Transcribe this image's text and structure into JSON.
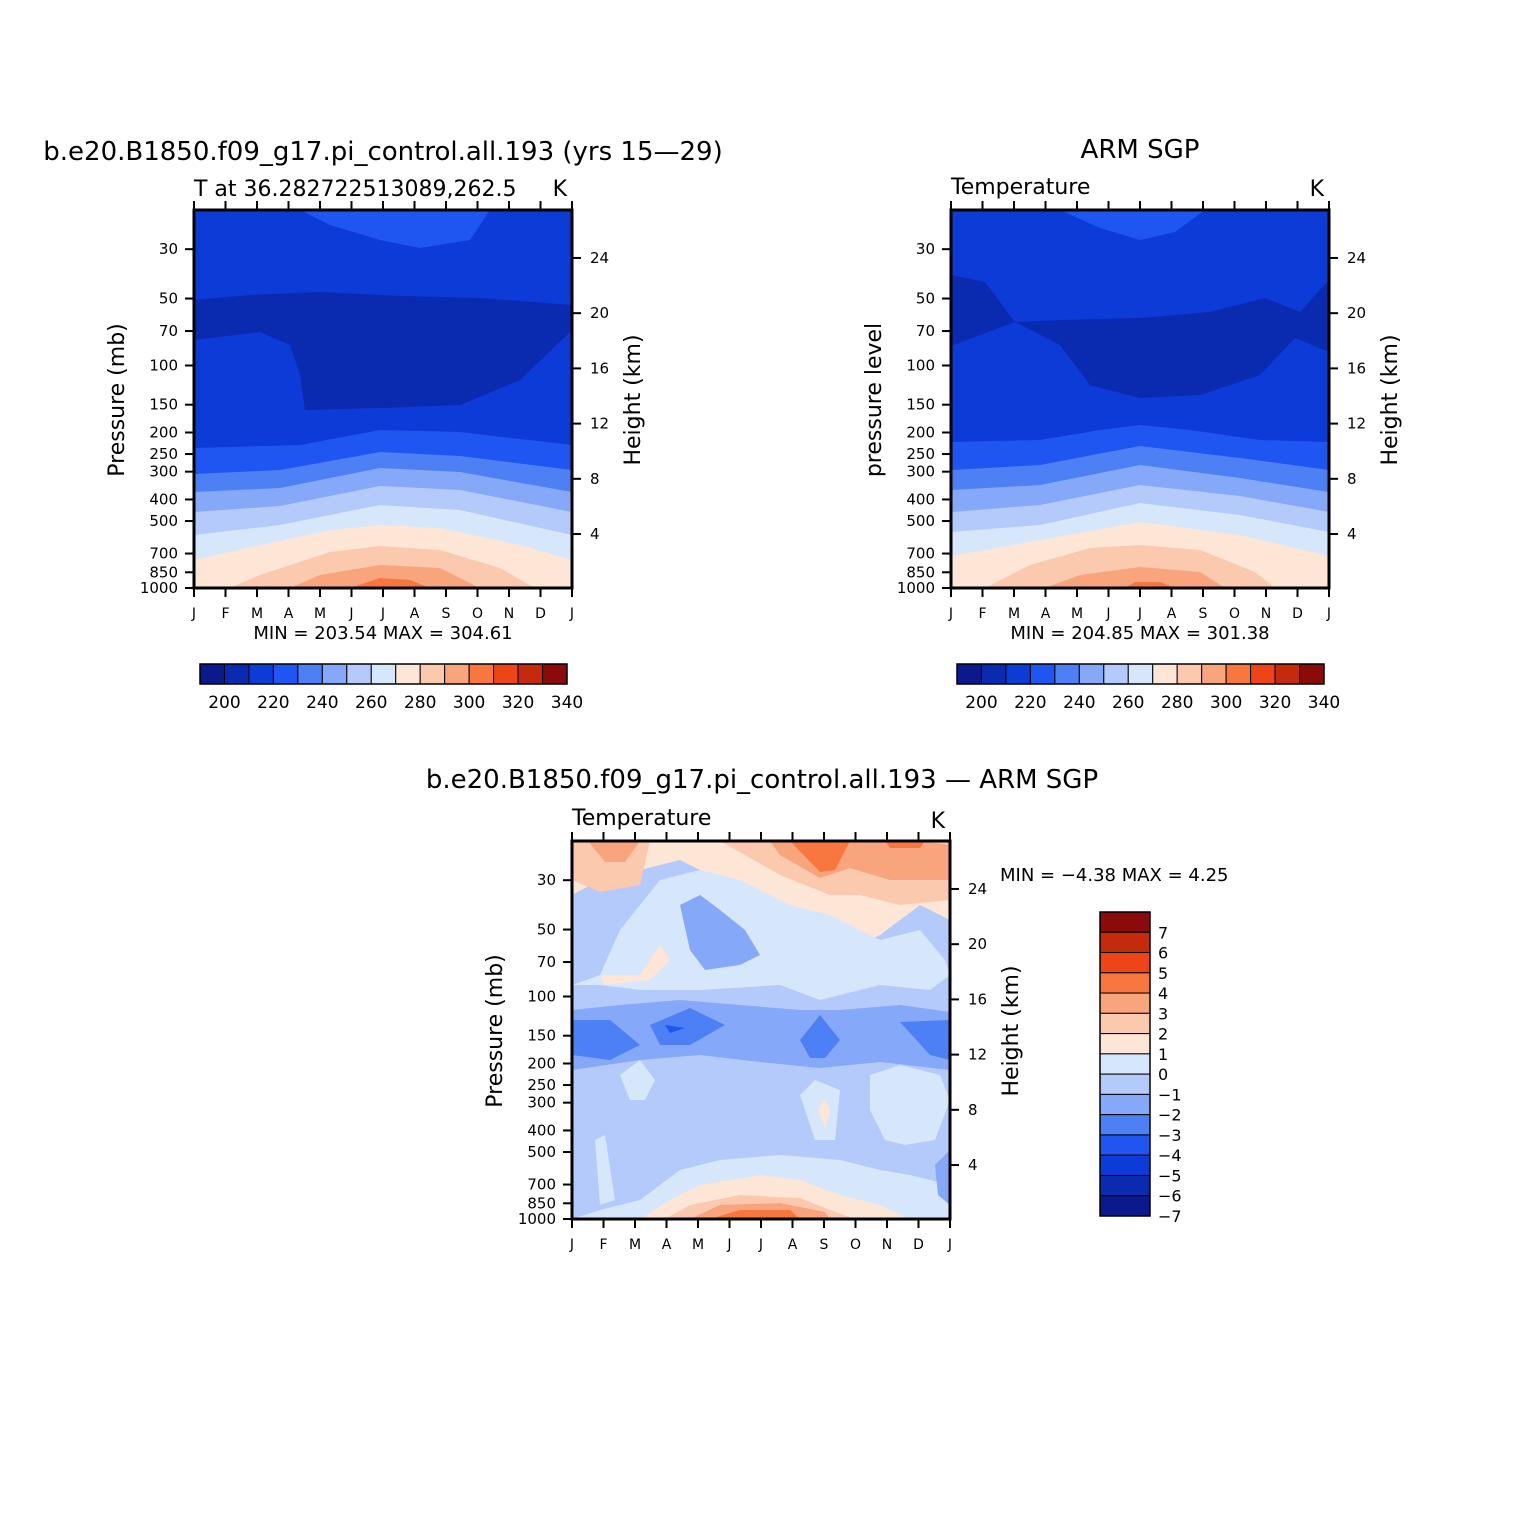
{
  "panels": [
    {
      "title": "b.e20.B1850.f09_g17.pi_control.all.193 (yrs 15—29)",
      "left_label": "T at 36.282722513089,262.5",
      "right_label": "K",
      "ylabel": "Pressure (mb)",
      "ylabel_right": "Height (km)",
      "stats": "MIN = 203.54 MAX = 304.61"
    },
    {
      "title": "ARM SGP",
      "left_label": "Temperature",
      "right_label": "K",
      "ylabel": "pressure level",
      "ylabel_right": "Height (km)",
      "stats": "MIN = 204.85 MAX = 301.38"
    },
    {
      "title": "b.e20.B1850.f09_g17.pi_control.all.193 — ARM SGP",
      "left_label": "Temperature",
      "right_label": "K",
      "ylabel": "Pressure (mb)",
      "ylabel_right": "Height (km)",
      "stats": "MIN = −4.38 MAX =  4.25"
    }
  ],
  "chart_data": [
    {
      "type": "heatmap",
      "title": "b.e20.B1850.f09_g17.pi_control.all.193 (yrs 15—29)",
      "variable": "T at 36.282722513089,262.5",
      "units": "K",
      "x_tick_labels": [
        "J",
        "F",
        "M",
        "A",
        "M",
        "J",
        "J",
        "A",
        "S",
        "O",
        "N",
        "D",
        "J"
      ],
      "y_ticks_pressure_mb": [
        30,
        50,
        70,
        100,
        150,
        200,
        250,
        300,
        400,
        500,
        700,
        850,
        1000
      ],
      "y_ticks_height_km": [
        24,
        20,
        16,
        12,
        8,
        4
      ],
      "ylabel": "Pressure (mb)",
      "ylabel_right": "Height (km)",
      "min": 203.54,
      "max": 304.61,
      "colorbar_labels": [
        200,
        220,
        240,
        260,
        280,
        300,
        320,
        340
      ],
      "approx_profile": {
        "pressure_mb": [
          30,
          70,
          150,
          250,
          400,
          700,
          1000
        ],
        "summer_K": [
          225,
          210,
          210,
          230,
          255,
          285,
          300
        ],
        "winter_K": [
          218,
          210,
          218,
          225,
          245,
          270,
          280
        ]
      }
    },
    {
      "type": "heatmap",
      "title": "ARM SGP",
      "variable": "Temperature",
      "units": "K",
      "x_tick_labels": [
        "J",
        "F",
        "M",
        "A",
        "M",
        "J",
        "J",
        "A",
        "S",
        "O",
        "N",
        "D",
        "J"
      ],
      "y_ticks_pressure_mb": [
        30,
        50,
        70,
        100,
        150,
        200,
        250,
        300,
        400,
        500,
        700,
        850,
        1000
      ],
      "y_ticks_height_km": [
        24,
        20,
        16,
        12,
        8,
        4
      ],
      "ylabel": "pressure level",
      "ylabel_right": "Height (km)",
      "min": 204.85,
      "max": 301.38,
      "colorbar_labels": [
        200,
        220,
        240,
        260,
        280,
        300,
        320,
        340
      ]
    },
    {
      "type": "heatmap",
      "title": "b.e20.B1850.f09_g17.pi_control.all.193 — ARM SGP",
      "variable": "Temperature",
      "units": "K",
      "x_tick_labels": [
        "J",
        "F",
        "M",
        "A",
        "M",
        "J",
        "J",
        "A",
        "S",
        "O",
        "N",
        "D",
        "J"
      ],
      "y_ticks_pressure_mb": [
        30,
        50,
        70,
        100,
        150,
        200,
        250,
        300,
        400,
        500,
        700,
        850,
        1000
      ],
      "y_ticks_height_km": [
        24,
        20,
        16,
        12,
        8,
        4
      ],
      "ylabel": "Pressure (mb)",
      "ylabel_right": "Height (km)",
      "min": -4.38,
      "max": 4.25,
      "colorbar_labels": [
        "7",
        "6",
        "5",
        "4",
        "3",
        "2",
        "1",
        "0",
        "−1",
        "−2",
        "−3",
        "−4",
        "−5",
        "−6",
        "−7"
      ]
    }
  ],
  "colors": {
    "abs_scale": [
      "#0a1a8c",
      "#0a2ab0",
      "#0c3bd8",
      "#1f55f0",
      "#4d7ff5",
      "#86a8f8",
      "#b4cafa",
      "#d6e6fb",
      "#fde6d6",
      "#fbc9ad",
      "#f8a47c",
      "#f7773f",
      "#ee4416",
      "#c52a0c",
      "#8b0a0a"
    ],
    "diff_scale": [
      "#8b0a0a",
      "#c52a0c",
      "#ee4416",
      "#f7773f",
      "#f8a47c",
      "#fbc9ad",
      "#fde6d6",
      "#d6e6fb",
      "#b4cafa",
      "#86a8f8",
      "#4d7ff5",
      "#1f55f0",
      "#0c3bd8",
      "#0a2ab0",
      "#0a1a8c"
    ]
  }
}
